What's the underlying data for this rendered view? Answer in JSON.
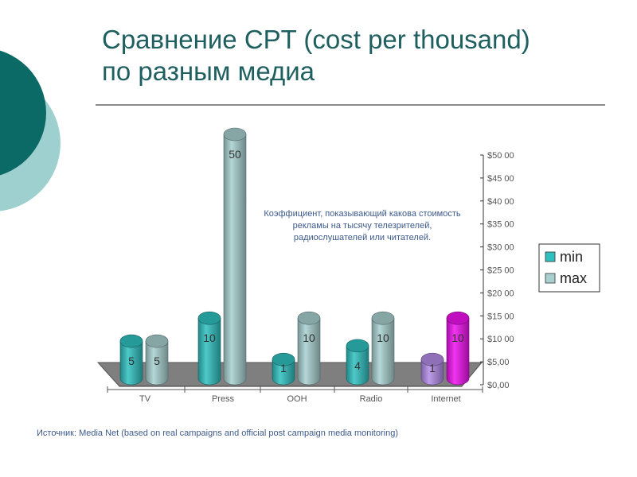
{
  "slide": {
    "title_line1": "Сравнение CPT (cost per thousand)",
    "title_line2": "по разным медиа",
    "source": "Источник: Media Net (based on real campaigns and official post campaign media monitoring)",
    "colors": {
      "title": "#1f5f60",
      "deco_dark": "#0b6a66",
      "deco_light": "#9fd0d0"
    }
  },
  "chart_data": {
    "type": "bar",
    "categories": [
      "TV",
      "Press",
      "OOH",
      "Radio",
      "Internet"
    ],
    "series": [
      {
        "name": "min",
        "values": [
          5,
          10,
          1,
          4,
          1
        ],
        "color": "#2fbfbf"
      },
      {
        "name": "max",
        "values": [
          5,
          50,
          10,
          10,
          10
        ],
        "color": "#a8d0d0"
      }
    ],
    "point_colors": {
      "Internet": {
        "min": "#b38be6",
        "max": "#ee11ee"
      }
    },
    "axis": {
      "ticks": [
        "$0,00",
        "$5,00",
        "$10 00",
        "$15 00",
        "$20 00",
        "$25 00",
        "$30 00",
        "$35 00",
        "$40 00",
        "$45 00",
        "$50 00"
      ],
      "ylim": [
        0,
        50
      ],
      "position": "right"
    },
    "annotation": "Коэффициент, показывающий какова стоимость рекламы на тысячу телезрителей, радиослушателей или читателей.",
    "legend": {
      "entries": [
        "min",
        "max"
      ],
      "position": "right"
    },
    "grid": false,
    "shape": "cylinder-3d"
  }
}
